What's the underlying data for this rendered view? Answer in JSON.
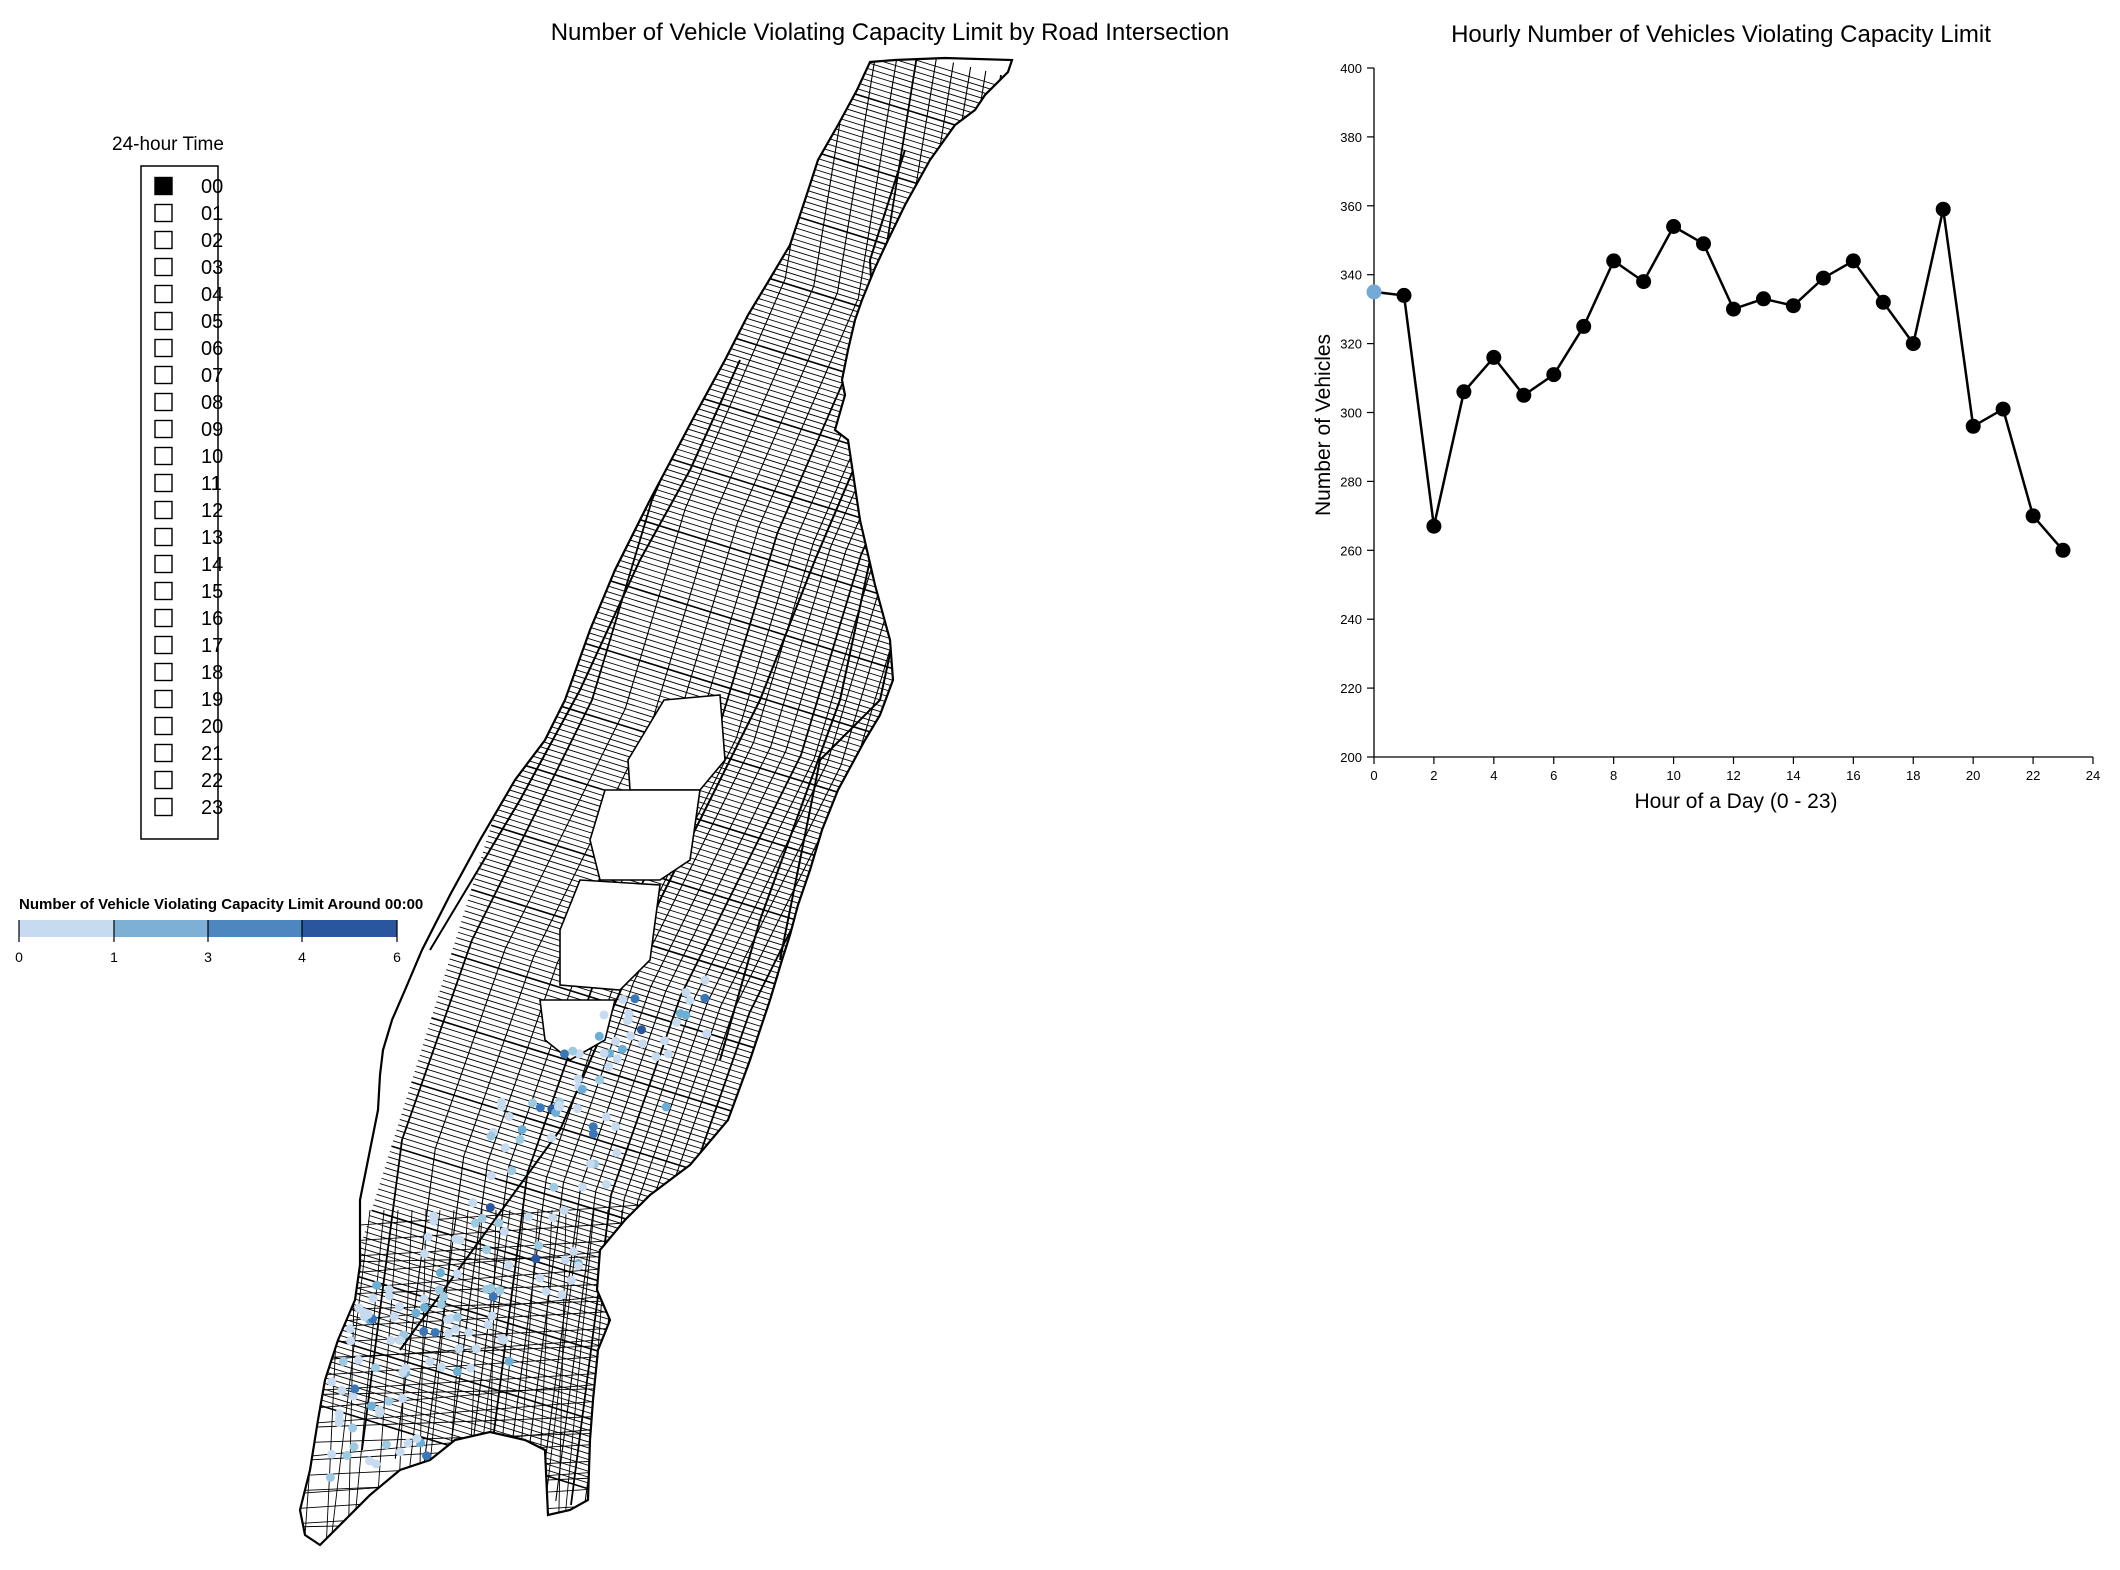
{
  "map": {
    "title": "Number of Vehicle Violating Capacity Limit by Road Intersection",
    "legend_title": "24-hour Time",
    "selected_hour": "00",
    "hours": [
      "00",
      "01",
      "02",
      "03",
      "04",
      "05",
      "06",
      "07",
      "08",
      "09",
      "10",
      "11",
      "12",
      "13",
      "14",
      "15",
      "16",
      "17",
      "18",
      "19",
      "20",
      "21",
      "22",
      "23"
    ],
    "scale": {
      "title": "Number of Vehicle Violating Capacity Limit Around 00:00",
      "ticks": [
        "0",
        "1",
        "3",
        "4",
        "6"
      ],
      "colors": [
        "#c6dbef",
        "#7eb0d5",
        "#4e86c0",
        "#2a56a0"
      ]
    },
    "road_color": "#000000",
    "point_colors": [
      "#c6dbef",
      "#9ecae1",
      "#6baed6",
      "#3a77b8",
      "#2a56a0"
    ]
  },
  "chart_data": {
    "type": "line",
    "title": "Hourly Number of Vehicles Violating Capacity Limit",
    "xlabel": "Hour of a Day (0 - 23)",
    "ylabel": "Number of Vehicles",
    "xlim": [
      0,
      24
    ],
    "ylim": [
      200,
      400
    ],
    "xticks": [
      0,
      2,
      4,
      6,
      8,
      10,
      12,
      14,
      16,
      18,
      20,
      22,
      24
    ],
    "yticks": [
      200,
      220,
      240,
      260,
      280,
      300,
      320,
      340,
      360,
      380,
      400
    ],
    "x": [
      0,
      1,
      2,
      3,
      4,
      5,
      6,
      7,
      8,
      9,
      10,
      11,
      12,
      13,
      14,
      15,
      16,
      17,
      18,
      19,
      20,
      21,
      22,
      23
    ],
    "values": [
      335,
      334,
      267,
      306,
      316,
      305,
      311,
      325,
      344,
      338,
      354,
      349,
      330,
      333,
      331,
      339,
      344,
      332,
      320,
      359,
      296,
      301,
      270,
      260
    ],
    "highlight_index": 0,
    "highlight_color": "#74a9d8",
    "point_color": "#000000",
    "grid": false
  }
}
